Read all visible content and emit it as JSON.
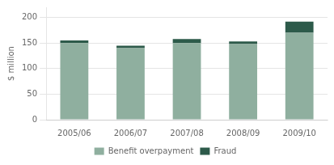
{
  "chart_data": {
    "type": "bar",
    "stacked": true,
    "ylabel": "$ million",
    "categories": [
      "2005/06",
      "2006/07",
      "2007/08",
      "2008/09",
      "2009/10"
    ],
    "series": [
      {
        "name": "Benefit overpayment",
        "color": "#8faf9f",
        "values": [
          150,
          140,
          150,
          148,
          170
        ]
      },
      {
        "name": "Fraud",
        "color": "#2d5a4a",
        "values": [
          5,
          5,
          8,
          5,
          22
        ]
      }
    ],
    "ylim": [
      0,
      220
    ],
    "yticks": [
      0,
      50,
      100,
      150,
      200
    ],
    "grid": true,
    "legend": "bottom"
  }
}
